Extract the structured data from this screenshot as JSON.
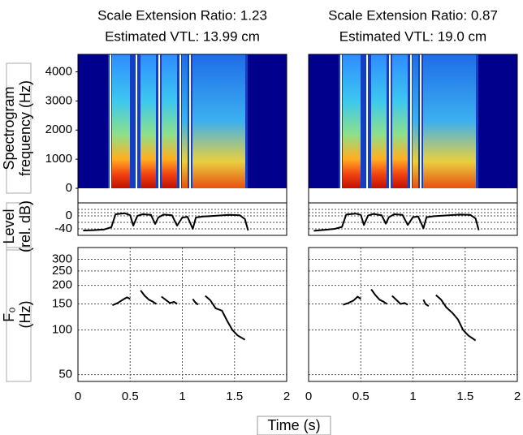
{
  "figure": {
    "xlabel": "Time (s)"
  },
  "chart_data": [
    {
      "type": "spectrogram",
      "title": "Scale Extension Ratio: 1.23",
      "subtitle": "Estimated VTL: 13.99 cm",
      "ylabel": [
        "Spectrogram",
        "frequency (Hz)"
      ],
      "ylim": [
        0,
        4600
      ],
      "yticks": [
        0,
        1000,
        2000,
        3000,
        4000
      ]
    },
    {
      "type": "line",
      "ylabel": [
        "Level",
        "(rel. dB)"
      ],
      "xlim": [
        0,
        2
      ],
      "ylim": [
        -60,
        40
      ],
      "yticks": [
        -40,
        0
      ],
      "minor_grid": [
        -20,
        10,
        20
      ],
      "color": "#000000",
      "x": [
        0.05,
        0.15,
        0.25,
        0.32,
        0.36,
        0.45,
        0.5,
        0.53,
        0.57,
        0.62,
        0.7,
        0.74,
        0.77,
        0.82,
        0.9,
        0.95,
        1.0,
        1.05,
        1.1,
        1.13,
        1.2,
        1.3,
        1.45,
        1.55,
        1.6,
        1.63
      ],
      "values": [
        -45,
        -44,
        -42,
        -35,
        5,
        8,
        2,
        -30,
        0,
        5,
        3,
        -25,
        -5,
        4,
        2,
        -30,
        -5,
        -3,
        -40,
        -5,
        -2,
        0,
        3,
        2,
        -10,
        -45
      ]
    },
    {
      "type": "line",
      "ylabel": [
        "F₀",
        "(Hz)"
      ],
      "log_scale": true,
      "grid": true,
      "xlim": [
        0,
        2
      ],
      "ylim": [
        45,
        360
      ],
      "xticks": [
        0,
        0.5,
        1,
        1.5,
        2
      ],
      "yticks": [
        50,
        100,
        150,
        200,
        250,
        300
      ],
      "color": "#000000",
      "x": [
        0.33,
        0.38,
        0.43,
        0.47,
        0.5,
        0.55,
        0.6,
        0.64,
        0.68,
        0.72,
        0.75,
        0.78,
        0.8,
        0.84,
        0.88,
        0.92,
        0.95,
        1.02,
        1.1,
        1.12,
        1.15,
        1.18,
        1.22,
        1.27,
        1.32,
        1.38,
        1.43,
        1.48,
        1.53,
        1.6
      ],
      "values": [
        147,
        152,
        160,
        166,
        162,
        null,
        185,
        170,
        160,
        155,
        150,
        null,
        168,
        160,
        152,
        155,
        150,
        null,
        162,
        155,
        148,
        null,
        170,
        158,
        140,
        135,
        115,
        100,
        92,
        86
      ]
    },
    {
      "type": "spectrogram",
      "title": "Scale Extension Ratio: 0.87",
      "subtitle": "Estimated VTL: 19.0 cm"
    },
    {
      "type": "line",
      "ytick_labels": false,
      "xlim": [
        0,
        2
      ],
      "ylim": [
        -60,
        40
      ],
      "yticks": [
        -40,
        0
      ],
      "minor_grid": [
        -20,
        10,
        20
      ],
      "color": "#000000",
      "x": [
        0.05,
        0.15,
        0.25,
        0.32,
        0.36,
        0.45,
        0.5,
        0.53,
        0.57,
        0.62,
        0.7,
        0.74,
        0.77,
        0.82,
        0.9,
        0.95,
        1.0,
        1.05,
        1.1,
        1.13,
        1.2,
        1.3,
        1.45,
        1.55,
        1.6,
        1.63
      ],
      "values": [
        -46,
        -43,
        -40,
        -34,
        4,
        7,
        3,
        -28,
        1,
        6,
        2,
        -24,
        -4,
        5,
        3,
        -28,
        -4,
        -2,
        -38,
        -4,
        -1,
        1,
        4,
        3,
        -8,
        -44
      ]
    },
    {
      "type": "line",
      "ytick_labels": false,
      "log_scale": true,
      "grid": true,
      "xlim": [
        0,
        2
      ],
      "ylim": [
        45,
        360
      ],
      "xticks": [
        0,
        0.5,
        1,
        1.5,
        2
      ],
      "yticks": [
        50,
        100,
        150,
        200,
        250,
        300
      ],
      "color": "#000000",
      "x": [
        0.33,
        0.38,
        0.43,
        0.47,
        0.5,
        0.55,
        0.6,
        0.64,
        0.68,
        0.72,
        0.75,
        0.78,
        0.8,
        0.84,
        0.88,
        0.92,
        0.95,
        1.02,
        1.1,
        1.12,
        1.15,
        1.18,
        1.22,
        1.27,
        1.32,
        1.38,
        1.43,
        1.48,
        1.53,
        1.6
      ],
      "values": [
        148,
        152,
        158,
        168,
        162,
        null,
        188,
        172,
        160,
        155,
        150,
        null,
        170,
        160,
        150,
        152,
        148,
        null,
        160,
        150,
        145,
        null,
        172,
        160,
        142,
        130,
        118,
        100,
        92,
        85
      ]
    }
  ]
}
